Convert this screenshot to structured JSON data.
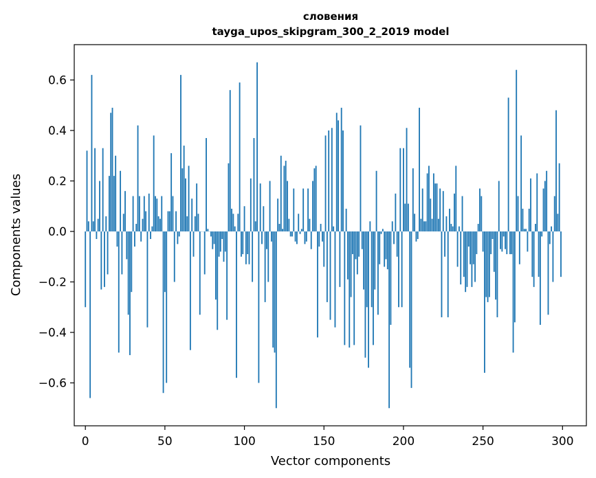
{
  "chart_data": {
    "type": "bar",
    "title": "словения",
    "subtitle": "tayga_upos_skipgram_300_2_2019 model",
    "xlabel": "Vector components",
    "ylabel": "Components values",
    "xlim": [
      -7,
      315
    ],
    "ylim": [
      -0.77,
      0.74
    ],
    "x_ticks": [
      0,
      50,
      100,
      150,
      200,
      250,
      300
    ],
    "y_ticks": [
      -0.6,
      -0.4,
      -0.2,
      0.0,
      0.2,
      0.4,
      0.6
    ],
    "y_tick_labels": [
      "−0.6",
      "−0.4",
      "−0.2",
      "0.0",
      "0.2",
      "0.4",
      "0.6"
    ],
    "bar_color": "#1f77b4",
    "values": [
      -0.3,
      0.32,
      0.04,
      -0.66,
      0.62,
      0.04,
      0.33,
      -0.03,
      0.05,
      0.2,
      -0.23,
      0.33,
      -0.22,
      0.06,
      -0.17,
      0.22,
      0.47,
      0.49,
      0.22,
      0.3,
      -0.06,
      -0.48,
      0.24,
      -0.17,
      0.07,
      0.16,
      -0.11,
      -0.33,
      -0.49,
      -0.24,
      0.14,
      -0.06,
      0.03,
      0.42,
      0.14,
      -0.04,
      0.05,
      0.14,
      0.08,
      -0.38,
      0.15,
      -0.03,
      0.02,
      0.38,
      0.14,
      0.13,
      0.06,
      0.05,
      0.14,
      -0.64,
      -0.24,
      -0.6,
      0.08,
      0.08,
      0.31,
      0.14,
      -0.2,
      0.08,
      -0.05,
      -0.02,
      0.62,
      0.25,
      0.34,
      0.21,
      0.06,
      0.26,
      -0.47,
      0.13,
      -0.1,
      0.06,
      0.19,
      0.07,
      -0.33,
      0.0,
      0.0,
      -0.17,
      0.37,
      0.01,
      0.0,
      -0.02,
      -0.07,
      -0.05,
      -0.27,
      -0.39,
      -0.1,
      -0.08,
      -0.03,
      -0.12,
      -0.08,
      -0.35,
      0.27,
      0.56,
      0.09,
      0.07,
      0.02,
      -0.58,
      0.07,
      0.59,
      -0.1,
      -0.09,
      0.1,
      -0.13,
      -0.09,
      -0.13,
      0.21,
      -0.2,
      0.37,
      0.04,
      0.67,
      -0.6,
      0.19,
      -0.05,
      0.1,
      -0.28,
      -0.07,
      -0.2,
      0.2,
      -0.04,
      -0.46,
      -0.48,
      -0.7,
      0.13,
      0.03,
      0.3,
      0.01,
      0.26,
      0.28,
      0.2,
      0.05,
      -0.02,
      -0.02,
      0.17,
      -0.04,
      -0.05,
      0.07,
      -0.01,
      0.01,
      0.17,
      -0.05,
      -0.04,
      0.17,
      0.05,
      -0.07,
      0.2,
      0.25,
      0.26,
      -0.42,
      -0.06,
      0.03,
      -0.04,
      -0.14,
      0.38,
      -0.28,
      0.4,
      -0.35,
      0.41,
      0.02,
      -0.38,
      0.47,
      0.44,
      -0.22,
      0.49,
      0.4,
      -0.45,
      0.09,
      -0.19,
      -0.46,
      -0.26,
      -0.09,
      -0.45,
      -0.11,
      -0.17,
      -0.1,
      0.42,
      -0.07,
      -0.23,
      -0.5,
      -0.3,
      -0.54,
      0.04,
      -0.3,
      -0.45,
      -0.23,
      0.24,
      -0.33,
      -0.13,
      -0.01,
      0.01,
      -0.14,
      -0.11,
      -0.15,
      -0.7,
      -0.37,
      0.04,
      -0.05,
      0.15,
      -0.1,
      -0.3,
      0.33,
      -0.3,
      0.33,
      0.11,
      0.41,
      0.11,
      -0.54,
      -0.62,
      0.25,
      0.07,
      -0.04,
      -0.03,
      0.49,
      0.05,
      0.17,
      0.04,
      0.04,
      0.23,
      0.26,
      0.13,
      0.05,
      0.23,
      0.19,
      0.19,
      0.05,
      0.17,
      -0.34,
      0.16,
      -0.1,
      0.06,
      -0.34,
      0.09,
      0.03,
      0.02,
      0.15,
      0.26,
      -0.14,
      0.02,
      -0.21,
      0.14,
      -0.18,
      -0.24,
      -0.22,
      -0.06,
      -0.13,
      -0.22,
      -0.13,
      -0.2,
      -0.09,
      0.03,
      0.17,
      0.14,
      -0.08,
      -0.56,
      -0.26,
      -0.28,
      -0.26,
      -0.09,
      -0.03,
      -0.16,
      -0.27,
      -0.34,
      0.2,
      -0.07,
      -0.08,
      -0.02,
      -0.07,
      -0.09,
      0.53,
      -0.09,
      -0.09,
      -0.48,
      -0.36,
      0.64,
      0.14,
      -0.13,
      0.38,
      0.09,
      0.01,
      0.01,
      -0.08,
      0.09,
      0.21,
      -0.18,
      -0.22,
      0.03,
      0.23,
      -0.18,
      -0.37,
      -0.02,
      0.17,
      0.2,
      0.24,
      -0.33,
      -0.05,
      0.02,
      -0.2,
      0.14,
      0.48,
      0.07,
      0.27,
      -0.18
    ]
  }
}
